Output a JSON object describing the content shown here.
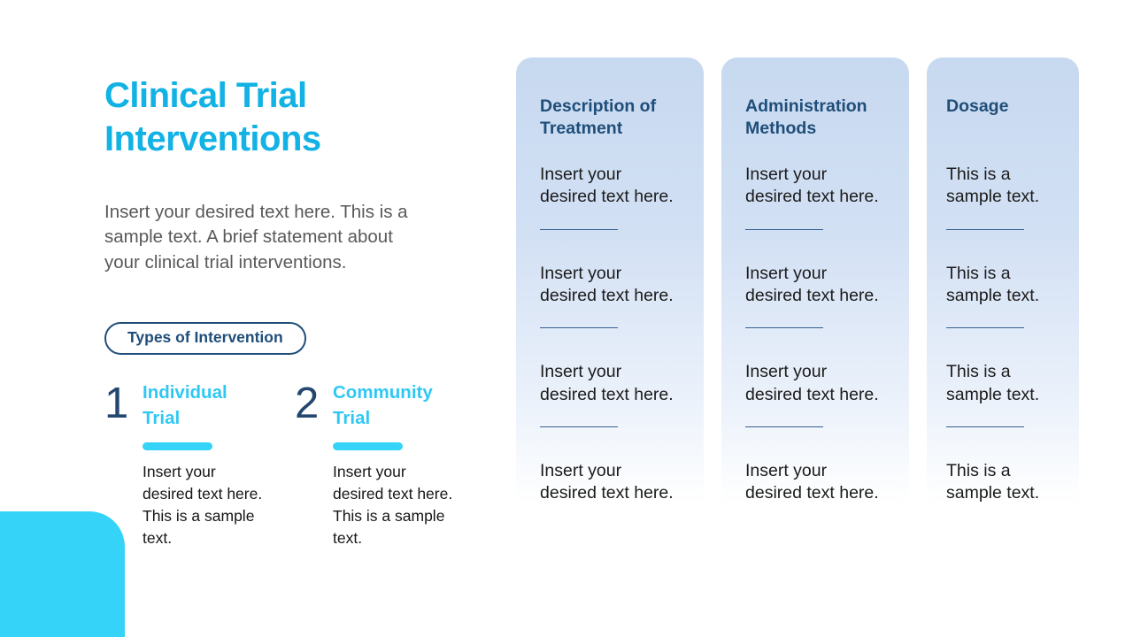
{
  "slide": {
    "title": "Clinical Trial\nInterventions",
    "intro": "Insert your desired text here. This is a\nsample text. A brief statement about\nyour clinical trial interventions.",
    "badge_label": "Types of Intervention",
    "interventions": [
      {
        "number": "1",
        "title": "Individual\nTrial",
        "body": "Insert your\ndesired text here.\nThis is a sample\ntext."
      },
      {
        "number": "2",
        "title": "Community\nTrial",
        "body": "Insert your\ndesired text here.\nThis is a sample\ntext."
      }
    ],
    "columns": [
      {
        "header": "Description of\nTreatment",
        "entries": [
          "Insert your\ndesired text here.",
          "Insert your\ndesired text here.",
          "Insert your\ndesired text here.",
          "Insert your\ndesired text here."
        ]
      },
      {
        "header": "Administration\nMethods",
        "entries": [
          "Insert your\ndesired text here.",
          "Insert your\ndesired text here.",
          "Insert your\ndesired text here.",
          "Insert your\ndesired text here."
        ]
      },
      {
        "header": "Dosage",
        "entries": [
          "This is a\nsample text.",
          "This is a\nsample text.",
          "This is a\nsample text.",
          "This is a\nsample text."
        ]
      }
    ],
    "colors": {
      "title_cyan": "#12b2e5",
      "item_title_cyan": "#2fc8f3",
      "accent_cyan": "#35d3f8",
      "dark_navy": "#1f4e79",
      "number_navy": "#24476f",
      "column_bg_blue": "#c7d9f0",
      "divider_navy": "#365f91",
      "intro_gray": "#595959",
      "body_dark": "#1b1b1b"
    }
  }
}
